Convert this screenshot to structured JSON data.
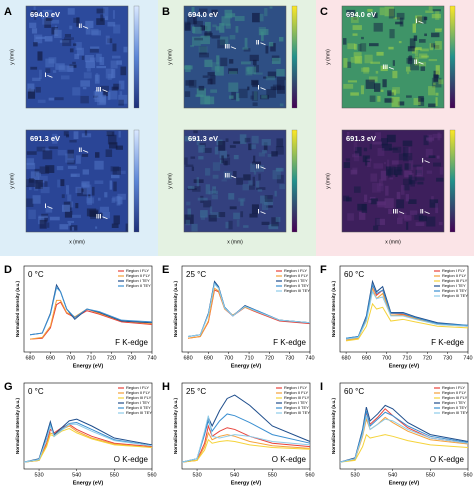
{
  "axis_labels": {
    "x": "x (mm)",
    "y": "y (mm)"
  },
  "maps": [
    {
      "letter": "A",
      "background": "#ddeef8",
      "images": [
        {
          "energy": "694.0 eV",
          "regions": [
            "II",
            "I",
            "III"
          ],
          "color": "#2c4a9c",
          "highlight": "#4f73c4"
        },
        {
          "energy": "691.3 eV",
          "regions": [
            "II",
            "I",
            "III"
          ],
          "color": "#2a4596",
          "highlight": "#4c6fc0"
        }
      ]
    },
    {
      "letter": "B",
      "background": "#e4f2e2",
      "images": [
        {
          "energy": "694.0 eV",
          "regions": [
            "III",
            "II",
            "I"
          ],
          "color": "#2e4f84",
          "highlight": "#3e8a8a"
        },
        {
          "energy": "691.3 eV",
          "regions": [
            "III",
            "II",
            "I"
          ],
          "color": "#33407e",
          "highlight": "#3b6b94"
        }
      ]
    },
    {
      "letter": "C",
      "background": "#fbe4e7",
      "images": [
        {
          "energy": "694.0 eV",
          "regions": [
            "I",
            "III",
            "II"
          ],
          "color": "#3f9468",
          "highlight": "#9bcf4a"
        },
        {
          "energy": "691.3 eV",
          "regions": [
            "I",
            "III",
            "II"
          ],
          "color": "#3d1f5c",
          "highlight": "#5a2f78"
        }
      ]
    }
  ],
  "chart_data": [
    {
      "type": "line",
      "panel": "D",
      "title": "0 °C",
      "annotation": "F K-edge",
      "x_label": "Energy (eV)",
      "y_label": "Normalized Intensity (a.u.)",
      "x": [
        680,
        686,
        690,
        693,
        695,
        698,
        702,
        708,
        714,
        725,
        740
      ],
      "xlim": [
        677,
        740
      ],
      "xticks": [
        680,
        690,
        700,
        710,
        720,
        730,
        740
      ],
      "ylim": [
        0,
        1
      ],
      "series": [
        {
          "name": "Region I FLY",
          "color": "#e8413a",
          "values": [
            0.15,
            0.16,
            0.28,
            0.55,
            0.58,
            0.45,
            0.4,
            0.48,
            0.44,
            0.35,
            0.32
          ]
        },
        {
          "name": "Region II FLY",
          "color": "#f4a13a",
          "values": [
            0.15,
            0.17,
            0.3,
            0.6,
            0.6,
            0.46,
            0.41,
            0.5,
            0.45,
            0.36,
            0.33
          ]
        },
        {
          "name": "Region I TEY",
          "color": "#1f4e8c",
          "values": [
            0.2,
            0.22,
            0.45,
            0.78,
            0.7,
            0.5,
            0.38,
            0.5,
            0.46,
            0.36,
            0.34
          ]
        },
        {
          "name": "Region II TEY",
          "color": "#3a8fd1",
          "values": [
            0.2,
            0.22,
            0.44,
            0.75,
            0.7,
            0.5,
            0.4,
            0.5,
            0.47,
            0.37,
            0.35
          ]
        }
      ]
    },
    {
      "type": "line",
      "panel": "E",
      "title": "25 °C",
      "annotation": "F K-edge",
      "x_label": "Energy (eV)",
      "y_label": "Normalized Intensity (a.u.)",
      "x": [
        680,
        686,
        690,
        693,
        695,
        698,
        702,
        708,
        714,
        725,
        740
      ],
      "xlim": [
        677,
        740
      ],
      "xticks": [
        680,
        690,
        700,
        710,
        720,
        730,
        740
      ],
      "ylim": [
        0,
        1
      ],
      "series": [
        {
          "name": "Region I FLY",
          "color": "#e8413a",
          "values": [
            0.16,
            0.18,
            0.35,
            0.72,
            0.7,
            0.5,
            0.42,
            0.52,
            0.46,
            0.36,
            0.33
          ]
        },
        {
          "name": "Region II FLY",
          "color": "#f4a13a",
          "values": [
            0.16,
            0.18,
            0.36,
            0.74,
            0.71,
            0.5,
            0.43,
            0.52,
            0.47,
            0.37,
            0.34
          ]
        },
        {
          "name": "Region I TEY",
          "color": "#1f4e8c",
          "values": [
            0.18,
            0.2,
            0.45,
            0.82,
            0.76,
            0.52,
            0.42,
            0.54,
            0.48,
            0.37,
            0.34
          ]
        },
        {
          "name": "Region II TEY",
          "color": "#3a8fd1",
          "values": [
            0.18,
            0.2,
            0.44,
            0.8,
            0.75,
            0.52,
            0.42,
            0.53,
            0.48,
            0.37,
            0.34
          ]
        },
        {
          "name": "Region III TEY",
          "color": "#8ecbe8",
          "values": [
            0.18,
            0.2,
            0.43,
            0.79,
            0.74,
            0.51,
            0.42,
            0.53,
            0.47,
            0.37,
            0.34
          ]
        }
      ]
    },
    {
      "type": "line",
      "panel": "F",
      "title": "60 °C",
      "annotation": "F K-edge",
      "x_label": "Energy (eV)",
      "y_label": "Normalized Intensity (a.u.)",
      "x": [
        680,
        686,
        690,
        693,
        695,
        698,
        702,
        708,
        714,
        725,
        740
      ],
      "xlim": [
        677,
        740
      ],
      "xticks": [
        680,
        690,
        700,
        710,
        720,
        730,
        740
      ],
      "ylim": [
        0,
        1
      ],
      "series": [
        {
          "name": "Region I FLY",
          "color": "#e8413a",
          "values": [
            0.14,
            0.16,
            0.4,
            0.78,
            0.66,
            0.72,
            0.45,
            0.44,
            0.4,
            0.33,
            0.3
          ]
        },
        {
          "name": "Region II FLY",
          "color": "#f4a13a",
          "values": [
            0.14,
            0.16,
            0.38,
            0.74,
            0.62,
            0.68,
            0.43,
            0.43,
            0.39,
            0.32,
            0.3
          ]
        },
        {
          "name": "Region III FLY",
          "color": "#f5d33a",
          "values": [
            0.13,
            0.15,
            0.3,
            0.56,
            0.5,
            0.52,
            0.36,
            0.38,
            0.35,
            0.3,
            0.28
          ]
        },
        {
          "name": "Region I TEY",
          "color": "#1f4e8c",
          "values": [
            0.16,
            0.18,
            0.42,
            0.82,
            0.7,
            0.76,
            0.46,
            0.46,
            0.41,
            0.34,
            0.31
          ]
        },
        {
          "name": "Region II TEY",
          "color": "#3a8fd1",
          "values": [
            0.16,
            0.18,
            0.4,
            0.78,
            0.68,
            0.72,
            0.45,
            0.45,
            0.4,
            0.33,
            0.31
          ]
        },
        {
          "name": "Region III TEY",
          "color": "#8ecbe8",
          "values": [
            0.15,
            0.17,
            0.36,
            0.7,
            0.62,
            0.64,
            0.42,
            0.42,
            0.38,
            0.32,
            0.3
          ]
        }
      ]
    },
    {
      "type": "line",
      "panel": "G",
      "title": "0 °C",
      "annotation": "O K-edge",
      "x_label": "Energy (eV)",
      "y_label": "Normalized Intensity (a.u.)",
      "x": [
        526,
        530,
        532,
        533,
        534,
        536,
        538,
        540,
        544,
        550,
        560
      ],
      "xlim": [
        526,
        560
      ],
      "xticks": [
        530,
        540,
        550,
        560
      ],
      "ylim": [
        0,
        1
      ],
      "series": [
        {
          "name": "Region I FLY",
          "color": "#e8413a",
          "values": [
            0.08,
            0.1,
            0.3,
            0.46,
            0.42,
            0.48,
            0.52,
            0.46,
            0.38,
            0.3,
            0.26
          ]
        },
        {
          "name": "Region II FLY",
          "color": "#f4a13a",
          "values": [
            0.08,
            0.1,
            0.28,
            0.42,
            0.4,
            0.46,
            0.5,
            0.44,
            0.36,
            0.29,
            0.25
          ]
        },
        {
          "name": "Region III FLY",
          "color": "#f5d33a",
          "values": [
            0.08,
            0.1,
            0.26,
            0.4,
            0.38,
            0.44,
            0.47,
            0.42,
            0.35,
            0.28,
            0.25
          ]
        },
        {
          "name": "Region I TEY",
          "color": "#1f4e8c",
          "values": [
            0.08,
            0.12,
            0.4,
            0.55,
            0.4,
            0.48,
            0.56,
            0.58,
            0.5,
            0.36,
            0.28
          ]
        },
        {
          "name": "Region II TEY",
          "color": "#3a8fd1",
          "values": [
            0.08,
            0.11,
            0.36,
            0.52,
            0.38,
            0.46,
            0.53,
            0.54,
            0.46,
            0.34,
            0.27
          ]
        },
        {
          "name": "Region III TEY",
          "color": "#8ecbe8",
          "values": [
            0.08,
            0.11,
            0.34,
            0.5,
            0.38,
            0.45,
            0.52,
            0.52,
            0.44,
            0.33,
            0.27
          ]
        }
      ]
    },
    {
      "type": "line",
      "panel": "H",
      "title": "25 °C",
      "annotation": "O K-edge",
      "x_label": "Energy (eV)",
      "y_label": "Normalized Intensity (a.u.)",
      "x": [
        526,
        530,
        532,
        533,
        534,
        536,
        538,
        540,
        544,
        550,
        560
      ],
      "xlim": [
        526,
        560
      ],
      "xticks": [
        530,
        540,
        550,
        560
      ],
      "ylim": [
        0,
        1
      ],
      "series": [
        {
          "name": "Region I FLY",
          "color": "#e8413a",
          "values": [
            0.08,
            0.1,
            0.3,
            0.5,
            0.38,
            0.44,
            0.48,
            0.46,
            0.38,
            0.3,
            0.26
          ]
        },
        {
          "name": "Region II FLY",
          "color": "#f4a13a",
          "values": [
            0.08,
            0.1,
            0.26,
            0.42,
            0.34,
            0.38,
            0.4,
            0.38,
            0.32,
            0.27,
            0.24
          ]
        },
        {
          "name": "Region III FLY",
          "color": "#f5d33a",
          "values": [
            0.08,
            0.1,
            0.22,
            0.34,
            0.3,
            0.32,
            0.33,
            0.32,
            0.28,
            0.25,
            0.23
          ]
        },
        {
          "name": "Region I TEY",
          "color": "#1f4e8c",
          "values": [
            0.08,
            0.12,
            0.42,
            0.6,
            0.5,
            0.68,
            0.82,
            0.86,
            0.74,
            0.5,
            0.32
          ]
        },
        {
          "name": "Region II TEY",
          "color": "#3a8fd1",
          "values": [
            0.08,
            0.12,
            0.4,
            0.56,
            0.44,
            0.56,
            0.64,
            0.62,
            0.54,
            0.4,
            0.3
          ]
        },
        {
          "name": "Region III TEY",
          "color": "#8ecbe8",
          "values": [
            0.08,
            0.12,
            0.44,
            0.62,
            0.38,
            0.36,
            0.38,
            0.4,
            0.38,
            0.32,
            0.28
          ]
        }
      ]
    },
    {
      "type": "line",
      "panel": "I",
      "title": "60 °C",
      "annotation": "O K-edge",
      "x_label": "Energy (eV)",
      "y_label": "Normalized Intensity (a.u.)",
      "x": [
        526,
        530,
        532,
        533,
        534,
        536,
        538,
        540,
        544,
        550,
        560
      ],
      "xlim": [
        526,
        560
      ],
      "xticks": [
        530,
        540,
        550,
        560
      ],
      "ylim": [
        0,
        1
      ],
      "series": [
        {
          "name": "Region I FLY",
          "color": "#e8413a",
          "values": [
            0.08,
            0.12,
            0.42,
            0.66,
            0.52,
            0.6,
            0.7,
            0.62,
            0.48,
            0.36,
            0.3
          ]
        },
        {
          "name": "Region II FLY",
          "color": "#f4a13a",
          "values": [
            0.08,
            0.11,
            0.38,
            0.58,
            0.46,
            0.52,
            0.6,
            0.54,
            0.44,
            0.34,
            0.29
          ]
        },
        {
          "name": "Region III FLY",
          "color": "#f5d33a",
          "values": [
            0.08,
            0.1,
            0.26,
            0.4,
            0.36,
            0.38,
            0.4,
            0.38,
            0.33,
            0.28,
            0.25
          ]
        },
        {
          "name": "Region I TEY",
          "color": "#1f4e8c",
          "values": [
            0.08,
            0.13,
            0.46,
            0.72,
            0.56,
            0.64,
            0.74,
            0.7,
            0.54,
            0.4,
            0.32
          ]
        },
        {
          "name": "Region II TEY",
          "color": "#3a8fd1",
          "values": [
            0.08,
            0.12,
            0.44,
            0.68,
            0.5,
            0.58,
            0.66,
            0.62,
            0.5,
            0.38,
            0.31
          ]
        },
        {
          "name": "Region III TEY",
          "color": "#8ecbe8",
          "values": [
            0.08,
            0.12,
            0.4,
            0.62,
            0.46,
            0.52,
            0.58,
            0.56,
            0.46,
            0.36,
            0.3
          ]
        }
      ]
    }
  ]
}
